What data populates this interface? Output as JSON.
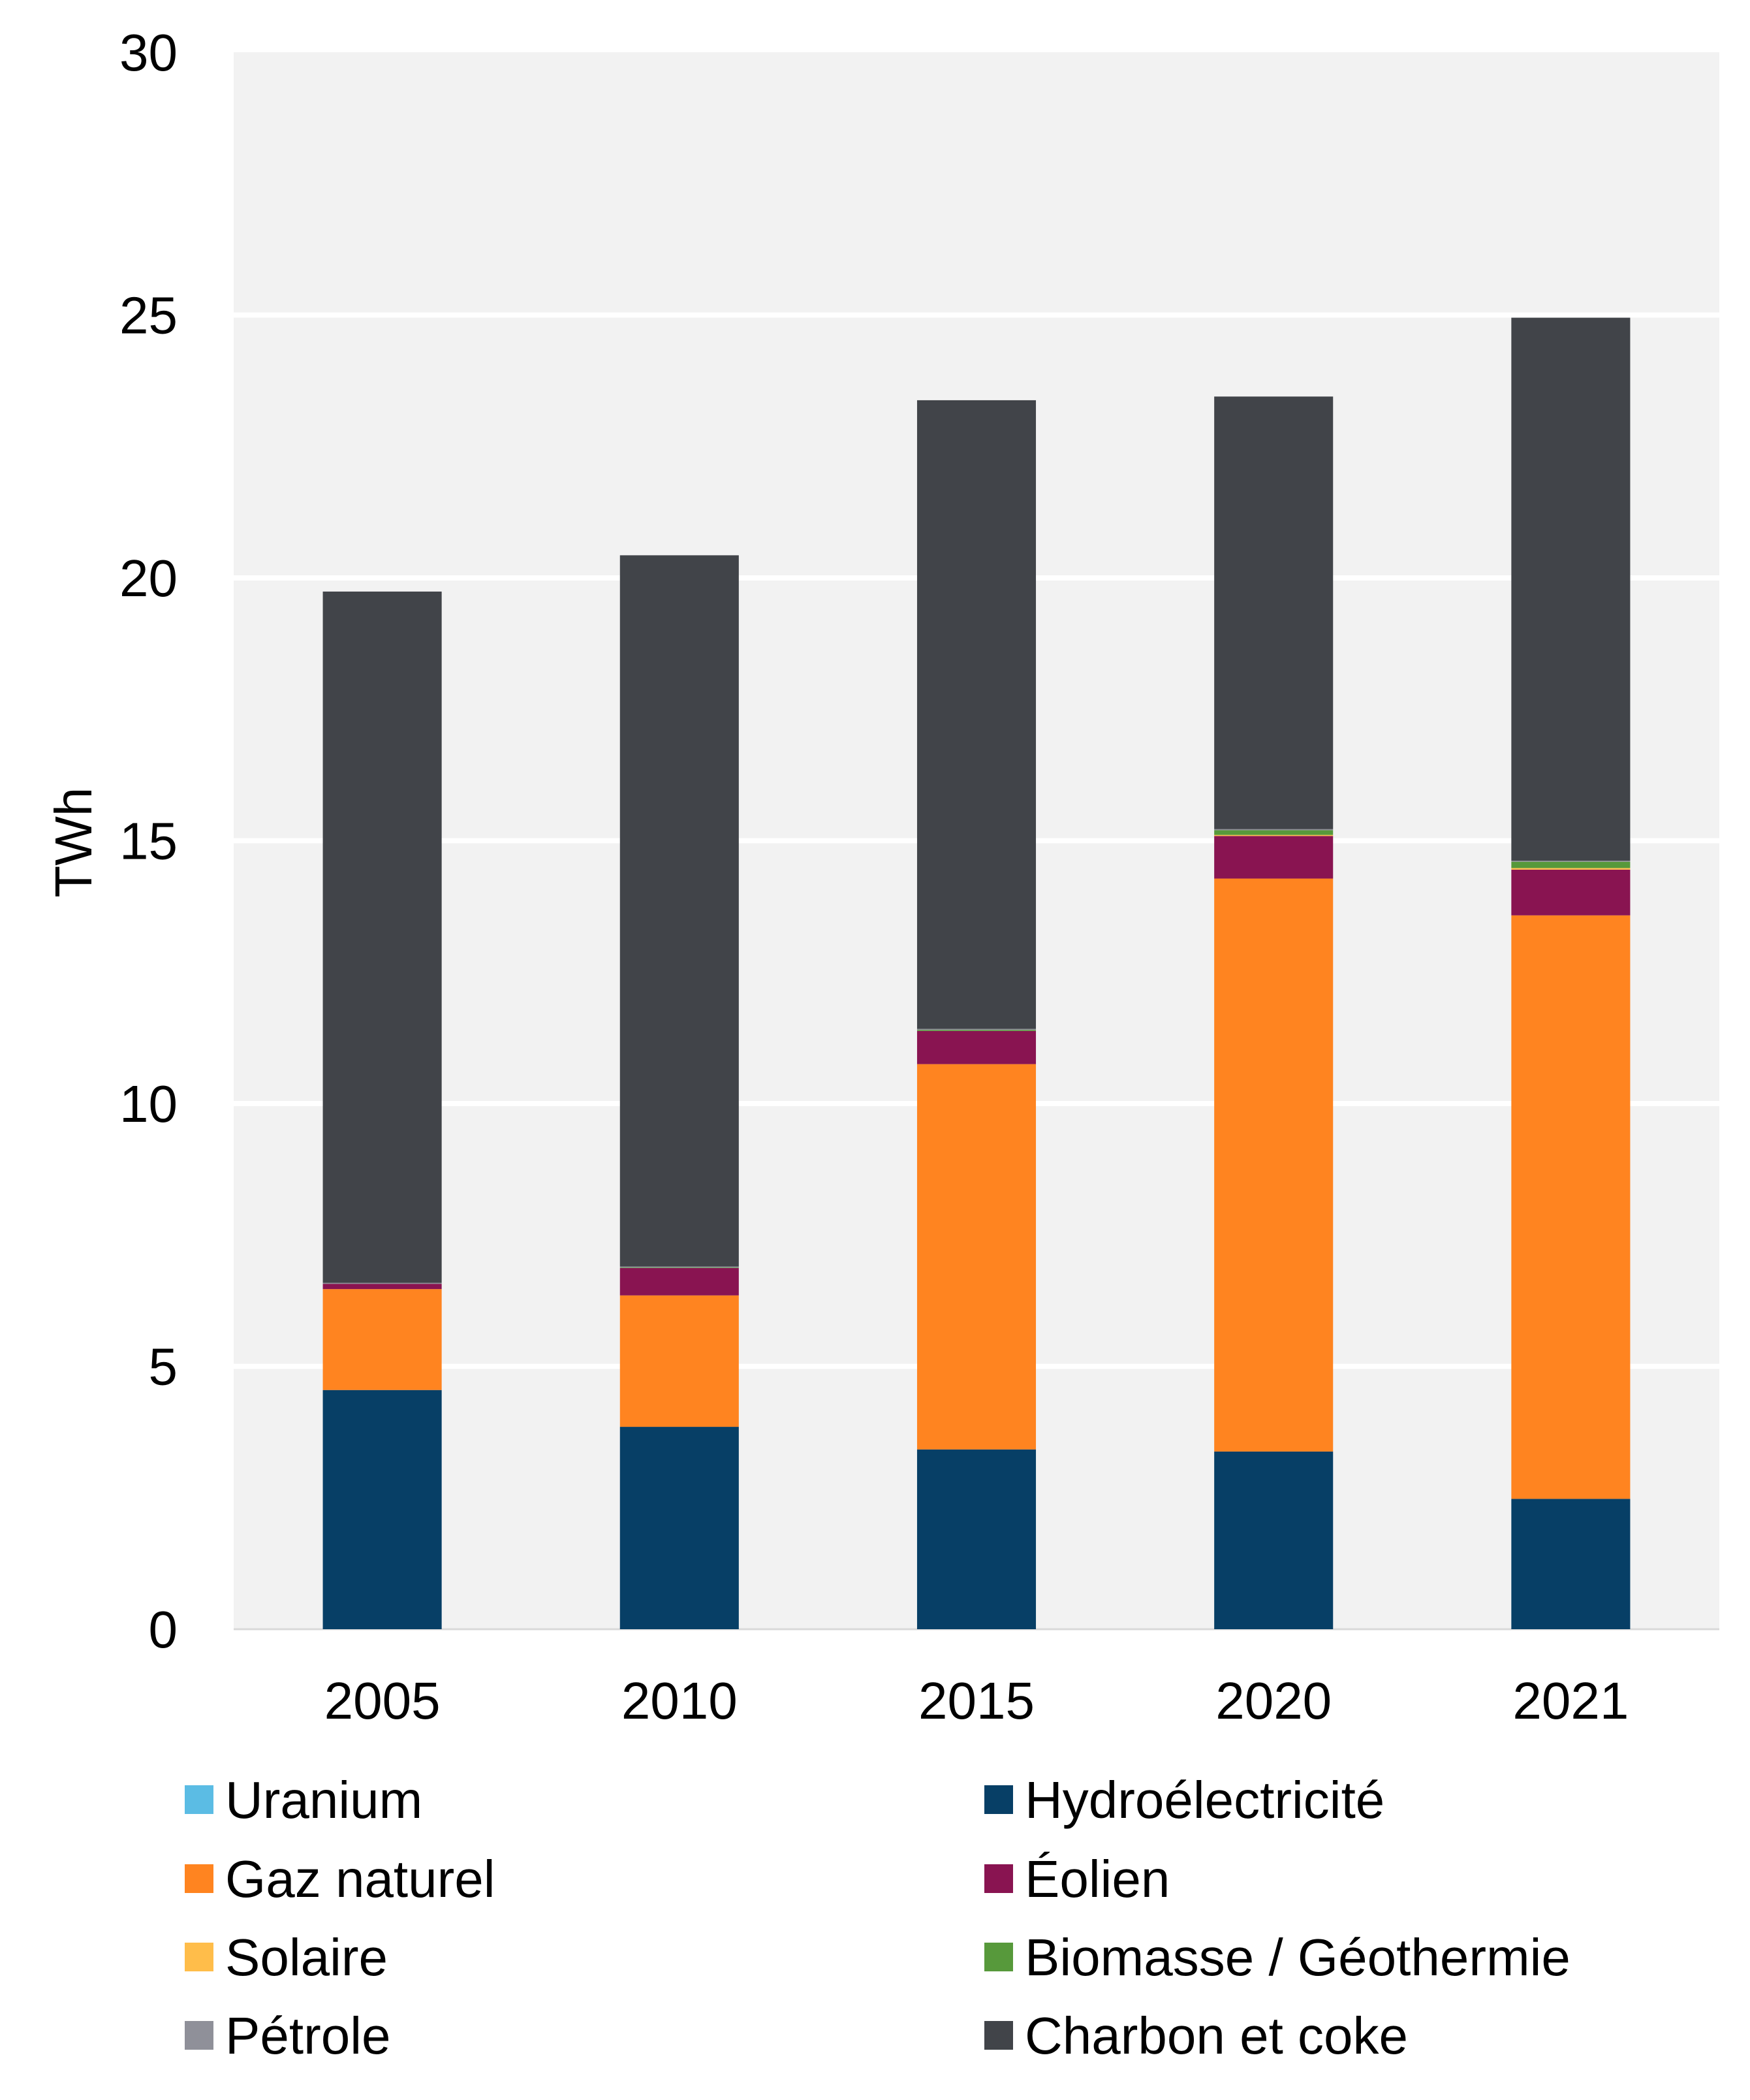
{
  "chart_data": {
    "type": "bar",
    "stacked": true,
    "categories": [
      "2005",
      "2010",
      "2015",
      "2020",
      "2021"
    ],
    "ylabel": "TWh",
    "ylim": [
      0,
      30
    ],
    "yticks": [
      "0",
      "5",
      "10",
      "15",
      "20",
      "25",
      "30"
    ],
    "grid": true,
    "legend_position": "bottom",
    "series": [
      {
        "name": "Uranium",
        "color": "#5BBCE4",
        "values": [
          0,
          0,
          0,
          0,
          0
        ]
      },
      {
        "name": "Hydroélectricité",
        "color": "#073F66",
        "values": [
          4.55,
          3.85,
          3.42,
          3.38,
          2.48
        ]
      },
      {
        "name": "Gaz naturel",
        "color": "#FF8420",
        "values": [
          1.92,
          2.5,
          7.33,
          10.9,
          11.1
        ]
      },
      {
        "name": "Éolien",
        "color": "#891451",
        "values": [
          0.1,
          0.52,
          0.63,
          0.81,
          0.87
        ]
      },
      {
        "name": "Solaire",
        "color": "#FFBD4A",
        "values": [
          0,
          0,
          0,
          0.02,
          0.03
        ]
      },
      {
        "name": "Biomasse / Géothermie",
        "color": "#57993B",
        "values": [
          0,
          0.01,
          0.02,
          0.09,
          0.12
        ]
      },
      {
        "name": "Pétrole",
        "color": "#8F9099",
        "values": [
          0.02,
          0.02,
          0.02,
          0.02,
          0.02
        ]
      },
      {
        "name": "Charbon et coke",
        "color": "#414449",
        "values": [
          13.15,
          13.53,
          11.96,
          8.23,
          10.33
        ]
      }
    ]
  }
}
